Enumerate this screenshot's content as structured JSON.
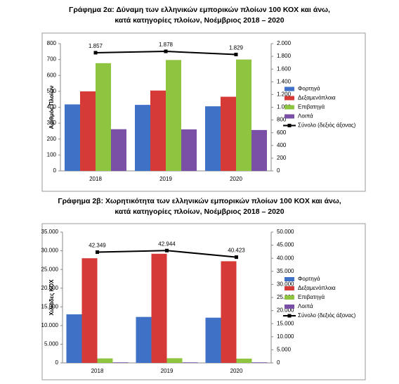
{
  "chart_data": [
    {
      "type": "bar",
      "title": [
        "Γράφημα 2α: Δύναμη των ελληνικών εμπορικών πλοίων 100 ΚΟΧ και άνω,",
        "κατά κατηγορίες πλοίων, Νοέμβριος 2018 – 2020"
      ],
      "y_label": "Αριθμός Πλοίων",
      "categories": [
        "2018",
        "2019",
        "2020"
      ],
      "ylim": [
        0,
        800
      ],
      "yticks": [
        0,
        100,
        200,
        300,
        400,
        500,
        600,
        700,
        800
      ],
      "y2lim": [
        0,
        2000
      ],
      "y2ticks": [
        0,
        200,
        400,
        600,
        800,
        {
          "value": 1000,
          "label": "1.000"
        },
        {
          "value": 1200,
          "label": "1.200"
        },
        {
          "value": 1400,
          "label": "1.400"
        },
        {
          "value": 1600,
          "label": "1.600"
        },
        {
          "value": 1800,
          "label": "1.800"
        },
        {
          "value": 2000,
          "label": "2.000"
        }
      ],
      "grid": false,
      "series": [
        {
          "name": "Φορτηγά",
          "color": "#3f72c6",
          "values": [
            418,
            415,
            406
          ]
        },
        {
          "name": "Δεξαμενόπλοια",
          "color": "#d63a36",
          "values": [
            500,
            505,
            466
          ]
        },
        {
          "name": "Επιβατηγά",
          "color": "#8fc440",
          "values": [
            677,
            697,
            700
          ]
        },
        {
          "name": "Λοιπά",
          "color": "#7a4fa6",
          "values": [
            262,
            261,
            257
          ]
        },
        {
          "name": "Σύνολο (δεξιός άξονας)",
          "color": "#000000",
          "type": "line",
          "axis": "y2",
          "values": [
            1857,
            1878,
            1829
          ],
          "value_labels": [
            "1.857",
            "1.878",
            "1.829"
          ]
        }
      ]
    },
    {
      "type": "bar",
      "title": [
        "Γράφημα 2β: Χωρητικότητα των ελληνικών εμπορικών πλοίων 100 ΚΟΧ και άνω,",
        "κατά κατηγορίες πλοίων, Νοέμβριος 2018 – 2020"
      ],
      "y_label": "Χιλιάδες ΚΟΧ",
      "categories": [
        "2018",
        "2019",
        "2020"
      ],
      "ylim": [
        0,
        35000
      ],
      "yticks": [
        0,
        {
          "value": 5000,
          "label": "5.000"
        },
        {
          "value": 10000,
          "label": "10.000"
        },
        {
          "value": 15000,
          "label": "15.000"
        },
        {
          "value": 20000,
          "label": "20.000"
        },
        {
          "value": 25000,
          "label": "25.000"
        },
        {
          "value": 30000,
          "label": "30.000"
        },
        {
          "value": 35000,
          "label": "35.000"
        }
      ],
      "y2lim": [
        0,
        50000
      ],
      "y2ticks": [
        0,
        {
          "value": 5000,
          "label": "5.000"
        },
        {
          "value": 10000,
          "label": "10.000"
        },
        {
          "value": 15000,
          "label": "15.000"
        },
        {
          "value": 20000,
          "label": "20.000"
        },
        {
          "value": 25000,
          "label": "25.000"
        },
        {
          "value": 30000,
          "label": "30.000"
        },
        {
          "value": 35000,
          "label": "35.000"
        },
        {
          "value": 40000,
          "label": "40.000"
        },
        {
          "value": 45000,
          "label": "45.000"
        },
        {
          "value": 50000,
          "label": "50.000"
        }
      ],
      "grid": false,
      "series": [
        {
          "name": "Φορτηγά",
          "color": "#3f72c6",
          "values": [
            13000,
            12300,
            12100
          ]
        },
        {
          "name": "Δεξαμενόπλοια",
          "color": "#d63a36",
          "values": [
            28000,
            29200,
            27200
          ]
        },
        {
          "name": "Επιβατηγά",
          "color": "#8fc440",
          "values": [
            1200,
            1250,
            1150
          ]
        },
        {
          "name": "Λοιπά",
          "color": "#7a4fa6",
          "values": [
            150,
            150,
            150
          ]
        },
        {
          "name": "Σύνολο (δεξιός άξονας)",
          "color": "#000000",
          "type": "line",
          "axis": "y2",
          "values": [
            42349,
            42944,
            40423
          ],
          "value_labels": [
            "42.349",
            "42.944",
            "40.423"
          ]
        }
      ]
    }
  ]
}
